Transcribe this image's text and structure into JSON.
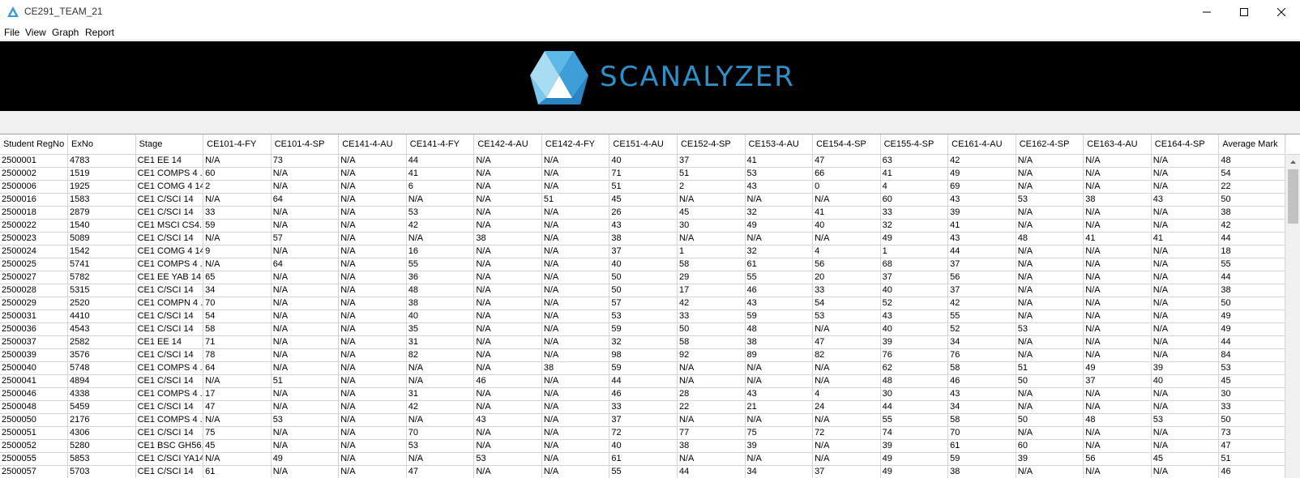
{
  "window": {
    "title": "CE291_TEAM_21"
  },
  "menu": [
    {
      "label": "File"
    },
    {
      "label": "View"
    },
    {
      "label": "Graph"
    },
    {
      "label": "Report"
    }
  ],
  "banner": {
    "brand": "SCANALYZER",
    "brand_color": "#2f8fc7"
  },
  "table": {
    "columns": [
      "Student RegNo",
      "ExNo",
      "Stage",
      "CE101-4-FY",
      "CE101-4-SP",
      "CE141-4-AU",
      "CE141-4-FY",
      "CE142-4-AU",
      "CE142-4-FY",
      "CE151-4-AU",
      "CE152-4-SP",
      "CE153-4-AU",
      "CE154-4-SP",
      "CE155-4-SP",
      "CE161-4-AU",
      "CE162-4-SP",
      "CE163-4-AU",
      "CE164-4-SP",
      "Average Mark"
    ],
    "rows": [
      [
        "2500001",
        "4783",
        "CE1 EE      14",
        "N/A",
        "73",
        "N/A",
        "44",
        "N/A",
        "N/A",
        "40",
        "37",
        "41",
        "47",
        "63",
        "42",
        "N/A",
        "N/A",
        "N/A",
        "48"
      ],
      [
        "2500002",
        "1519",
        "CE1 COMPS 4 ...",
        "60",
        "N/A",
        "N/A",
        "41",
        "N/A",
        "N/A",
        "71",
        "51",
        "53",
        "66",
        "41",
        "49",
        "N/A",
        "N/A",
        "N/A",
        "54"
      ],
      [
        "2500006",
        "1925",
        "CE1  COMG 4 14",
        "2",
        "N/A",
        "N/A",
        "6",
        "N/A",
        "N/A",
        "51",
        "2",
        "43",
        "0",
        "4",
        "69",
        "N/A",
        "N/A",
        "N/A",
        "22"
      ],
      [
        "2500016",
        "1583",
        "CE1 C/SCI   14",
        "N/A",
        "64",
        "N/A",
        "N/A",
        "N/A",
        "51",
        "45",
        "N/A",
        "N/A",
        "N/A",
        "60",
        "43",
        "53",
        "38",
        "43",
        "50"
      ],
      [
        "2500018",
        "2879",
        "CE1 C/SCI   14",
        "33",
        "N/A",
        "N/A",
        "53",
        "N/A",
        "N/A",
        "26",
        "45",
        "32",
        "41",
        "33",
        "39",
        "N/A",
        "N/A",
        "N/A",
        "38"
      ],
      [
        "2500022",
        "1540",
        "CE1 MSCI CS4...",
        "59",
        "N/A",
        "N/A",
        "42",
        "N/A",
        "N/A",
        "43",
        "30",
        "49",
        "40",
        "32",
        "41",
        "N/A",
        "N/A",
        "N/A",
        "42"
      ],
      [
        "2500023",
        "5089",
        "CE1 C/SCI   14",
        "N/A",
        "57",
        "N/A",
        "N/A",
        "38",
        "N/A",
        "38",
        "N/A",
        "N/A",
        "N/A",
        "49",
        "43",
        "48",
        "41",
        "41",
        "44"
      ],
      [
        "2500024",
        "1542",
        "CE1  COMG 4 14",
        "9",
        "N/A",
        "N/A",
        "16",
        "N/A",
        "N/A",
        "37",
        "1",
        "32",
        "4",
        "1",
        "44",
        "N/A",
        "N/A",
        "N/A",
        "18"
      ],
      [
        "2500025",
        "5741",
        "CE1 COMPS 4 ...",
        "N/A",
        "64",
        "N/A",
        "55",
        "N/A",
        "N/A",
        "40",
        "58",
        "61",
        "56",
        "68",
        "37",
        "N/A",
        "N/A",
        "N/A",
        "55"
      ],
      [
        "2500027",
        "5782",
        "CE1 EE YAB  14",
        "65",
        "N/A",
        "N/A",
        "36",
        "N/A",
        "N/A",
        "50",
        "29",
        "55",
        "20",
        "37",
        "56",
        "N/A",
        "N/A",
        "N/A",
        "44"
      ],
      [
        "2500028",
        "5315",
        "CE1 C/SCI   14",
        "34",
        "N/A",
        "N/A",
        "48",
        "N/A",
        "N/A",
        "50",
        "17",
        "46",
        "33",
        "40",
        "37",
        "N/A",
        "N/A",
        "N/A",
        "38"
      ],
      [
        "2500029",
        "2520",
        "CE1 COMPN 4 ...",
        "70",
        "N/A",
        "N/A",
        "38",
        "N/A",
        "N/A",
        "57",
        "42",
        "43",
        "54",
        "52",
        "42",
        "N/A",
        "N/A",
        "N/A",
        "50"
      ],
      [
        "2500031",
        "4410",
        "CE1 C/SCI   14",
        "54",
        "N/A",
        "N/A",
        "40",
        "N/A",
        "N/A",
        "53",
        "33",
        "59",
        "53",
        "43",
        "55",
        "N/A",
        "N/A",
        "N/A",
        "49"
      ],
      [
        "2500036",
        "4543",
        "CE1 C/SCI   14",
        "58",
        "N/A",
        "N/A",
        "35",
        "N/A",
        "N/A",
        "59",
        "50",
        "48",
        "N/A",
        "40",
        "52",
        "53",
        "N/A",
        "N/A",
        "49"
      ],
      [
        "2500037",
        "2582",
        "CE1 EE      14",
        "71",
        "N/A",
        "N/A",
        "31",
        "N/A",
        "N/A",
        "32",
        "58",
        "38",
        "47",
        "39",
        "34",
        "N/A",
        "N/A",
        "N/A",
        "44"
      ],
      [
        "2500039",
        "3576",
        "CE1 C/SCI   14",
        "78",
        "N/A",
        "N/A",
        "82",
        "N/A",
        "N/A",
        "98",
        "92",
        "89",
        "82",
        "76",
        "76",
        "N/A",
        "N/A",
        "N/A",
        "84"
      ],
      [
        "2500040",
        "5748",
        "CE1 COMPS 4 ...",
        "64",
        "N/A",
        "N/A",
        "N/A",
        "N/A",
        "38",
        "59",
        "N/A",
        "N/A",
        "N/A",
        "62",
        "58",
        "51",
        "49",
        "39",
        "53"
      ],
      [
        "2500041",
        "4894",
        "CE1 C/SCI   14",
        "N/A",
        "51",
        "N/A",
        "N/A",
        "46",
        "N/A",
        "44",
        "N/A",
        "N/A",
        "N/A",
        "48",
        "46",
        "50",
        "37",
        "40",
        "45"
      ],
      [
        "2500046",
        "4338",
        "CE1 COMPS 4 ...",
        "17",
        "N/A",
        "N/A",
        "31",
        "N/A",
        "N/A",
        "46",
        "28",
        "43",
        "4",
        "30",
        "43",
        "N/A",
        "N/A",
        "N/A",
        "30"
      ],
      [
        "2500048",
        "5459",
        "CE1 C/SCI   14",
        "47",
        "N/A",
        "N/A",
        "42",
        "N/A",
        "N/A",
        "33",
        "22",
        "21",
        "24",
        "44",
        "34",
        "N/A",
        "N/A",
        "N/A",
        "33"
      ],
      [
        "2500050",
        "2176",
        "CE1 COMPS 4 ...",
        "N/A",
        "53",
        "N/A",
        "N/A",
        "43",
        "N/A",
        "37",
        "N/A",
        "N/A",
        "N/A",
        "55",
        "58",
        "50",
        "48",
        "53",
        "50"
      ],
      [
        "2500051",
        "4306",
        "CE1 C/SCI   14",
        "75",
        "N/A",
        "N/A",
        "70",
        "N/A",
        "N/A",
        "72",
        "77",
        "75",
        "72",
        "74",
        "70",
        "N/A",
        "N/A",
        "N/A",
        "73"
      ],
      [
        "2500052",
        "5280",
        "CE1 BSC GH56...",
        "45",
        "N/A",
        "N/A",
        "53",
        "N/A",
        "N/A",
        "40",
        "38",
        "39",
        "N/A",
        "39",
        "61",
        "60",
        "N/A",
        "N/A",
        "47"
      ],
      [
        "2500055",
        "5853",
        "CE1 C/SCI YA14",
        "N/A",
        "49",
        "N/A",
        "N/A",
        "53",
        "N/A",
        "61",
        "N/A",
        "N/A",
        "N/A",
        "49",
        "59",
        "39",
        "56",
        "45",
        "51"
      ],
      [
        "2500057",
        "5703",
        "CE1 C/SCI   14",
        "61",
        "N/A",
        "N/A",
        "47",
        "N/A",
        "N/A",
        "55",
        "44",
        "34",
        "37",
        "49",
        "38",
        "N/A",
        "N/A",
        "N/A",
        "46"
      ]
    ]
  }
}
